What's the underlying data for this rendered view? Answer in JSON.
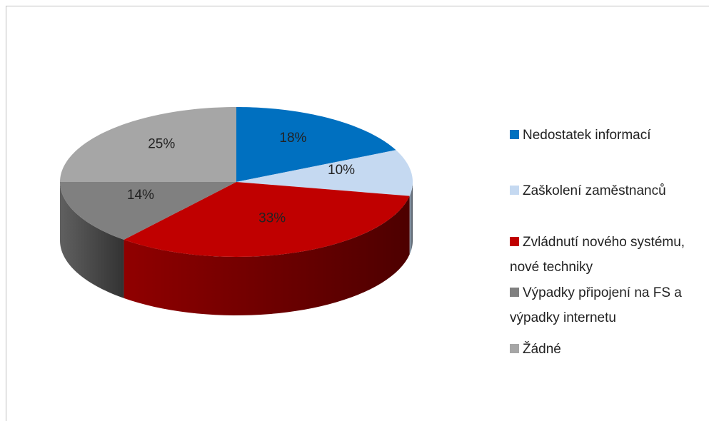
{
  "chart_data": {
    "type": "pie3d",
    "categories": [
      "Nedostatek informací",
      "Zaškolení zaměstnanců",
      "Zvládnutí nového systému, nové techniky",
      "Výpadky připojení na FS a výpadky internetu",
      "Žádné"
    ],
    "values": [
      18,
      10,
      33,
      14,
      25
    ],
    "value_labels": [
      "18%",
      "10%",
      "33%",
      "14%",
      "25%"
    ],
    "colors": [
      "#0070c0",
      "#c5d9f1",
      "#c00000",
      "#808080",
      "#a6a6a6"
    ],
    "legend": "right"
  }
}
